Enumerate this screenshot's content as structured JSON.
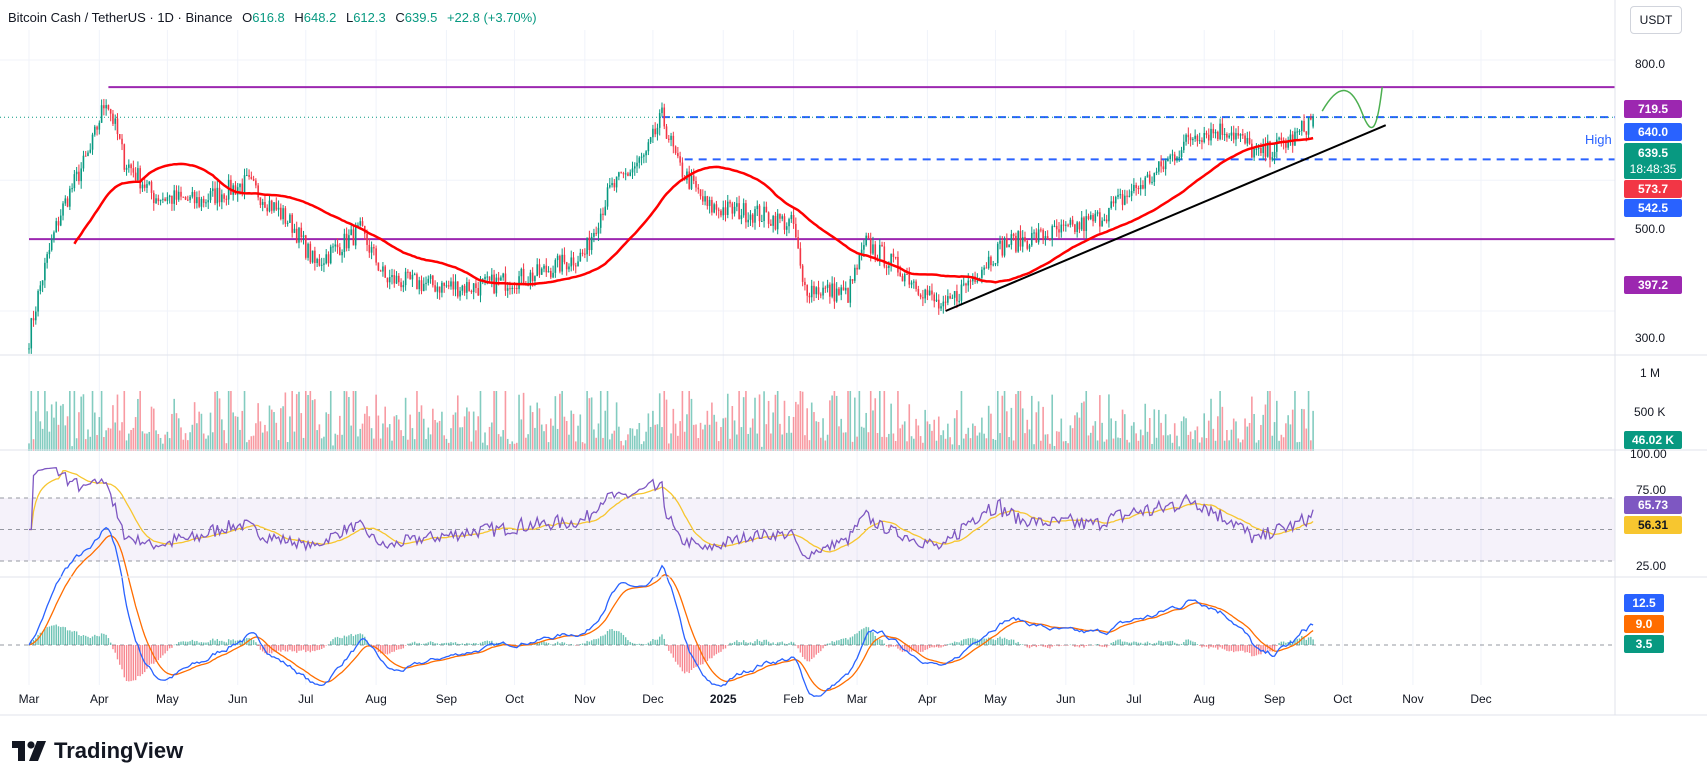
{
  "header": {
    "symbol": "Bitcoin Cash / TetherUS · 1D · Binance",
    "o_label": "O",
    "o_value": "616.8",
    "h_label": "H",
    "h_value": "648.2",
    "l_label": "L",
    "l_value": "612.3",
    "c_label": "C",
    "c_value": "639.5",
    "change": "+22.8 (+3.70%)"
  },
  "unit_button": "USDT",
  "brand": "TradingView",
  "high_label": "High",
  "price_tags": {
    "resistance_top": "719.5",
    "high_line": "640.0",
    "last_price": "639.5",
    "countdown": "18:48:35",
    "sma": "573.7",
    "support_mid": "542.5",
    "support_low": "397.2"
  },
  "volume_tag": "46.02 K",
  "rsi_tags": {
    "rsi": "65.73",
    "signal": "56.31"
  },
  "macd_tags": {
    "macd": "12.5",
    "signal": "9.0",
    "hist": "3.5"
  },
  "price_axis": [
    "800.0",
    "500.0",
    "300.0"
  ],
  "volume_axis": [
    "1 M",
    "500 K"
  ],
  "rsi_axis": [
    "100.00",
    "75.00",
    "25.00"
  ],
  "x_axis": [
    {
      "label": "Mar",
      "bold": false
    },
    {
      "label": "Apr",
      "bold": false
    },
    {
      "label": "May",
      "bold": false
    },
    {
      "label": "Jun",
      "bold": false
    },
    {
      "label": "Jul",
      "bold": false
    },
    {
      "label": "Aug",
      "bold": false
    },
    {
      "label": "Sep",
      "bold": false
    },
    {
      "label": "Oct",
      "bold": false
    },
    {
      "label": "Nov",
      "bold": false
    },
    {
      "label": "Dec",
      "bold": false
    },
    {
      "label": "2025",
      "bold": true
    },
    {
      "label": "Feb",
      "bold": false
    },
    {
      "label": "Mar",
      "bold": false
    },
    {
      "label": "Apr",
      "bold": false
    },
    {
      "label": "May",
      "bold": false
    },
    {
      "label": "Jun",
      "bold": false
    },
    {
      "label": "Jul",
      "bold": false
    },
    {
      "label": "Aug",
      "bold": false
    },
    {
      "label": "Sep",
      "bold": false
    },
    {
      "label": "Oct",
      "bold": false
    },
    {
      "label": "Nov",
      "bold": false
    },
    {
      "label": "Dec",
      "bold": false
    }
  ],
  "colors": {
    "up": "#089981",
    "down": "#f23645",
    "sma": "#ff0000",
    "resistance": "#9c27b0",
    "support": "#2962ff",
    "trend": "#000000",
    "rsi": "#7e57c2",
    "rsi_ma": "#f7c62f",
    "macd": "#2962ff",
    "macd_signal": "#ff6d00",
    "last": "#089981"
  },
  "chart_data": {
    "type": "candlestick",
    "symbol": "BCH/USDT",
    "timeframe": "1D",
    "period": "2024-03 to 2025-09",
    "horizontal_levels": [
      {
        "value": 719.5,
        "style": "solid",
        "color": "#9c27b0"
      },
      {
        "value": 640.0,
        "style": "dashed",
        "color": "#2962ff",
        "label": "High"
      },
      {
        "value": 542.5,
        "style": "dashed",
        "color": "#2962ff"
      },
      {
        "value": 397.2,
        "style": "solid",
        "color": "#9c27b0"
      }
    ],
    "trendline": {
      "from": {
        "date": "2025-04-09",
        "price": 300
      },
      "to": {
        "date": "2025-10-20",
        "price": 620
      }
    },
    "sma_last": 573.7,
    "close_path": [
      {
        "date": "2024-03-01",
        "close": 270
      },
      {
        "date": "2024-03-15",
        "close": 440
      },
      {
        "date": "2024-03-28",
        "close": 560
      },
      {
        "date": "2024-04-04",
        "close": 690
      },
      {
        "date": "2024-04-12",
        "close": 540
      },
      {
        "date": "2024-04-25",
        "close": 470
      },
      {
        "date": "2024-05-15",
        "close": 460
      },
      {
        "date": "2024-06-05",
        "close": 495
      },
      {
        "date": "2024-06-25",
        "close": 420
      },
      {
        "date": "2024-07-05",
        "close": 360
      },
      {
        "date": "2024-07-25",
        "close": 410
      },
      {
        "date": "2024-08-05",
        "close": 340
      },
      {
        "date": "2024-09-01",
        "close": 330
      },
      {
        "date": "2024-09-15",
        "close": 330
      },
      {
        "date": "2024-10-10",
        "close": 345
      },
      {
        "date": "2024-11-01",
        "close": 375
      },
      {
        "date": "2024-11-12",
        "close": 480
      },
      {
        "date": "2024-11-28",
        "close": 550
      },
      {
        "date": "2024-12-05",
        "close": 640
      },
      {
        "date": "2024-12-12",
        "close": 530
      },
      {
        "date": "2024-12-25",
        "close": 450
      },
      {
        "date": "2025-01-15",
        "close": 440
      },
      {
        "date": "2025-02-01",
        "close": 420
      },
      {
        "date": "2025-02-05",
        "close": 330
      },
      {
        "date": "2025-02-25",
        "close": 320
      },
      {
        "date": "2025-03-05",
        "close": 390
      },
      {
        "date": "2025-03-25",
        "close": 340
      },
      {
        "date": "2025-04-08",
        "close": 300
      },
      {
        "date": "2025-05-05",
        "close": 390
      },
      {
        "date": "2025-06-01",
        "close": 410
      },
      {
        "date": "2025-06-15",
        "close": 430
      },
      {
        "date": "2025-07-10",
        "close": 510
      },
      {
        "date": "2025-07-28",
        "close": 600
      },
      {
        "date": "2025-08-12",
        "close": 610
      },
      {
        "date": "2025-08-25",
        "close": 550
      },
      {
        "date": "2025-09-10",
        "close": 590
      },
      {
        "date": "2025-09-18",
        "close": 639.5
      }
    ],
    "last": {
      "open": 616.8,
      "high": 648.2,
      "low": 612.3,
      "close": 639.5,
      "change": 22.8,
      "change_pct": 3.7
    },
    "volume_last": 46020,
    "rsi": {
      "value": 65.73,
      "signal": 56.31,
      "overbought": 75,
      "oversold": 25
    },
    "macd": {
      "macd": 12.5,
      "signal": 9.0,
      "histogram": 3.5
    },
    "y_axis_price_ticks": [
      800,
      500,
      300
    ],
    "y_scale": "log"
  }
}
